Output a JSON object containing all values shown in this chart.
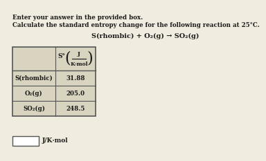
{
  "title_line1": "Enter your answer in the provided box.",
  "title_line2": "Calculate the standard entropy change for the following reaction at 25°C.",
  "reaction": "S(rhombic) + O₂(g) → SO₂(g)",
  "table_header_s": "S°",
  "table_header_J": "J",
  "table_header_Kmol": "K·mol",
  "rows": [
    [
      "S(rhombic)",
      "31.88"
    ],
    [
      "O₂(g)",
      "205.0"
    ],
    [
      "SO₂(g)",
      "248.5"
    ]
  ],
  "answer_label": "J/K·mol",
  "bg_color": "#f0ede0",
  "text_color": "#1a1a1a",
  "table_bg": "#d8d4c0",
  "table_border": "#555555",
  "white": "#ffffff"
}
